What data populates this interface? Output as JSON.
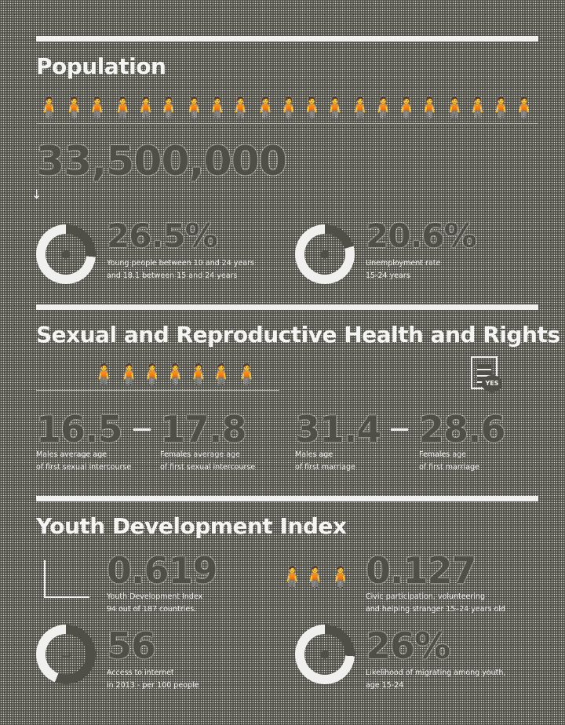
{
  "population": {
    "title": "Population",
    "total": "33,500,000",
    "arrow": "↓",
    "stat1": {
      "value": "26.5%",
      "percent": 26.5,
      "line1": "Young people between 10 and 24 years",
      "line2": "and 18.1 between 15 and 24 years"
    },
    "stat2": {
      "value": "20.6%",
      "percent": 20.6,
      "line1": "Unemployment rate",
      "line2": "15-24 years"
    }
  },
  "srhr": {
    "title": "Sexual and Reproductive Health and Rights",
    "doc_badge": "YES",
    "intercourse": {
      "male": "16.5",
      "female": "17.8",
      "male_l1": "Males average age",
      "male_l2": "of first sexual intercourse",
      "female_l1": "Females average age",
      "female_l2": "of first sexual intercourse"
    },
    "marriage": {
      "male": "31.4",
      "female": "28.6",
      "male_l1": "Males age",
      "male_l2": "of first marriage",
      "female_l1": "Females age",
      "female_l2": "of first marriage"
    }
  },
  "ydi": {
    "title": "Youth Development Index",
    "index": {
      "value": "0.619",
      "line1": "Youth Development Index",
      "line2": "94 out of 187 countries."
    },
    "civic": {
      "value": "0.127",
      "line1": "Civic participation, volunteering",
      "line2": "and helping stranger 15–24 years old"
    },
    "internet": {
      "value": "56",
      "percent": 56,
      "line1": "Access to internet",
      "line2": "in 2013 - per 100 people"
    },
    "migration": {
      "value": "26%",
      "percent": 26,
      "line1": "Likelihood of migrating among youth,",
      "line2": "age 15-24"
    }
  },
  "colors": {
    "background": "#4f4f48",
    "foreground": "#f0f0ee"
  }
}
